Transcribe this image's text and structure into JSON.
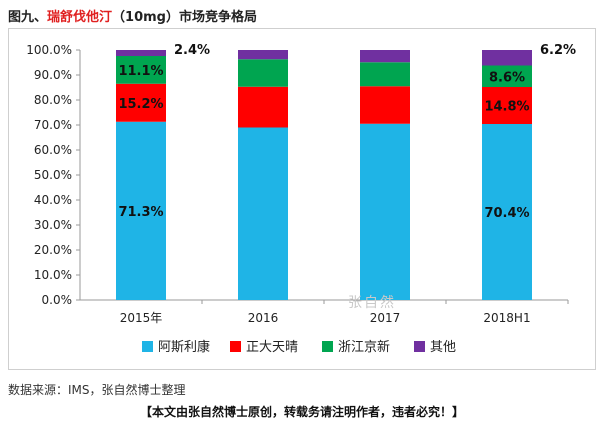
{
  "title": {
    "prefix": "图九、",
    "highlight": "瑞舒伐他汀",
    "suffix": "（10mg）市场竞争格局"
  },
  "chart_data": {
    "type": "bar",
    "stacked": true,
    "categories": [
      "2015年",
      "2016",
      "2017",
      "2018H1"
    ],
    "series": [
      {
        "name": "阿斯利康",
        "color": "#1fb4e6",
        "values": [
          71.3,
          69.0,
          70.5,
          70.4
        ]
      },
      {
        "name": "正大天晴",
        "color": "#ff0000",
        "values": [
          15.2,
          16.3,
          15.0,
          14.8
        ]
      },
      {
        "name": "浙江京新",
        "color": "#00a550",
        "values": [
          11.1,
          11.0,
          9.6,
          8.6
        ]
      },
      {
        "name": "其他",
        "color": "#7030a0",
        "values": [
          2.4,
          3.7,
          4.9,
          6.2
        ]
      }
    ],
    "ylim": [
      0,
      100
    ],
    "yticks": [
      "0.0%",
      "10.0%",
      "20.0%",
      "30.0%",
      "40.0%",
      "50.0%",
      "60.0%",
      "70.0%",
      "80.0%",
      "90.0%",
      "100.0%"
    ],
    "data_labels": [
      {
        "category": 0,
        "series": 0,
        "text": "71.3%"
      },
      {
        "category": 0,
        "series": 1,
        "text": "15.2%"
      },
      {
        "category": 0,
        "series": 2,
        "text": "11.1%"
      },
      {
        "category": 0,
        "series": 3,
        "text": "2.4%"
      },
      {
        "category": 3,
        "series": 0,
        "text": "70.4%"
      },
      {
        "category": 3,
        "series": 1,
        "text": "14.8%"
      },
      {
        "category": 3,
        "series": 2,
        "text": "8.6%"
      },
      {
        "category": 3,
        "series": 3,
        "text": "6.2%"
      }
    ],
    "legend_position": "bottom",
    "grid": false
  },
  "watermark": "张自然",
  "source": "数据来源：IMS，张自然博士整理",
  "note": "【本文由张自然博士原创，转载务请注明作者，违者必究！】"
}
